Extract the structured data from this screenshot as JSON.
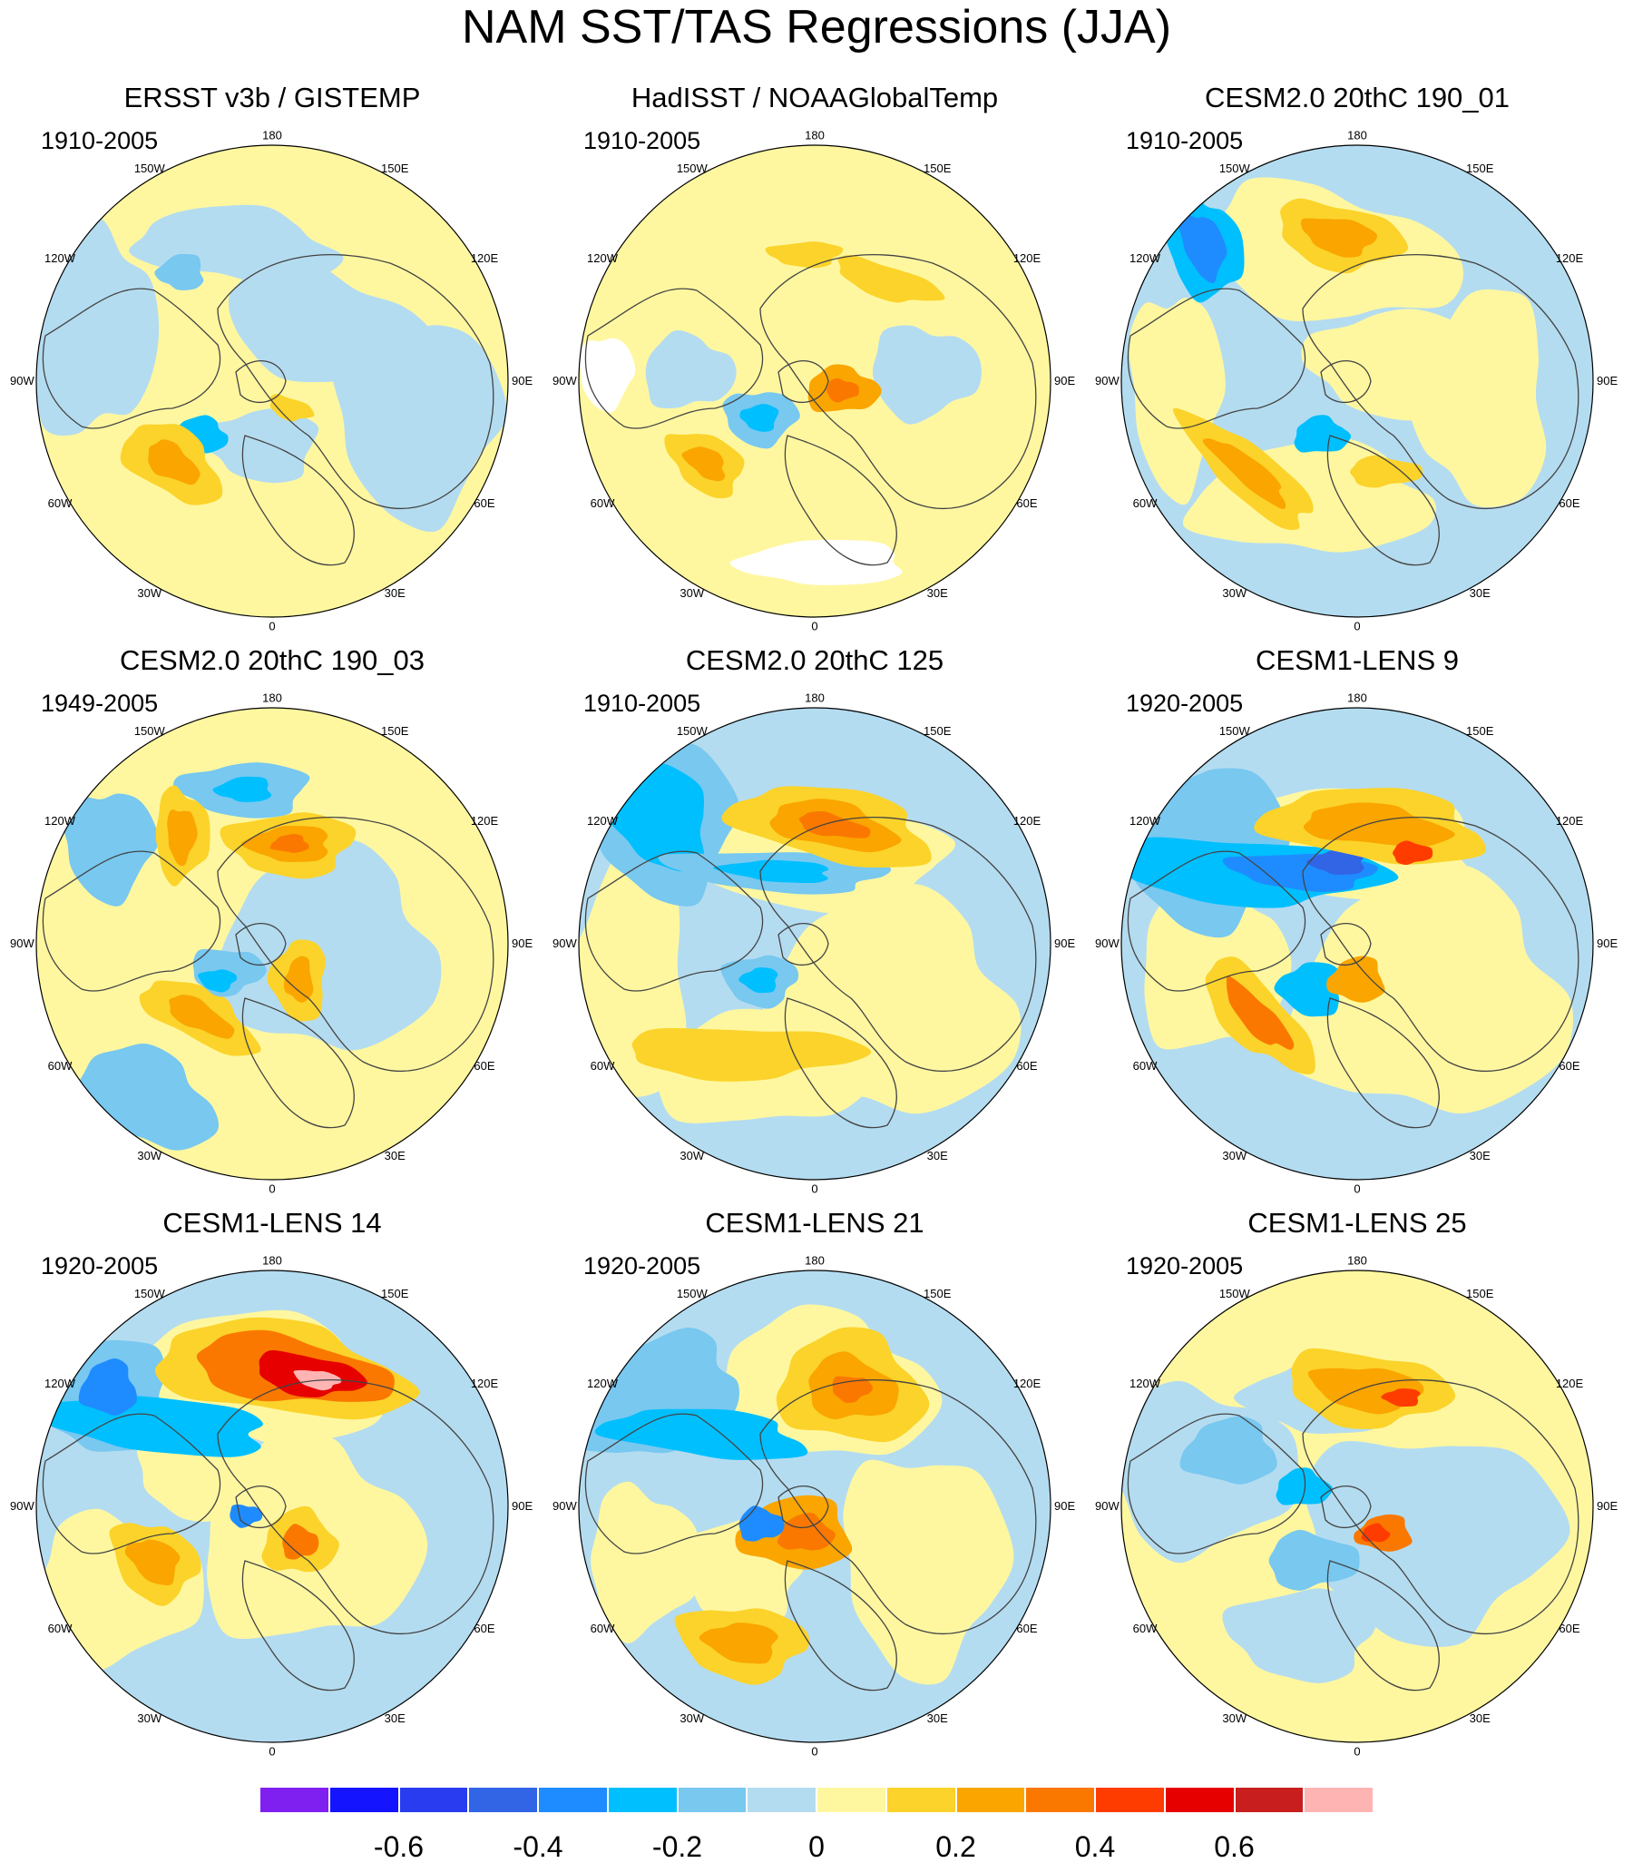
{
  "title": "NAM SST/TAS Regressions (JJA)",
  "longitude_labels": [
    "180",
    "150E",
    "120E",
    "90E",
    "60E",
    "30E",
    "0",
    "30W",
    "60W",
    "90W",
    "120W",
    "150W"
  ],
  "colors": {
    "land_outline": "#444444",
    "missing": "#ffffff",
    "circle": "#000000"
  },
  "panels": [
    {
      "title": "ERSST v3b / GISTEMP",
      "period": "1910-2005"
    },
    {
      "title": "HadISST / NOAAGlobalTemp",
      "period": "1910-2005"
    },
    {
      "title": "CESM2.0 20thC 190_01",
      "period": "1910-2005"
    },
    {
      "title": "CESM2.0 20thC 190_03",
      "period": "1949-2005"
    },
    {
      "title": "CESM2.0 20thC 125",
      "period": "1910-2005"
    },
    {
      "title": "CESM1-LENS 9",
      "period": "1920-2005"
    },
    {
      "title": "CESM1-LENS 14",
      "period": "1920-2005"
    },
    {
      "title": "CESM1-LENS 21",
      "period": "1920-2005"
    },
    {
      "title": "CESM1-LENS 25",
      "period": "1920-2005"
    }
  ],
  "colorbar": {
    "colors": [
      "#8020f0",
      "#1414ff",
      "#2a3cf0",
      "#3264e6",
      "#1e8cff",
      "#00bfff",
      "#78c8f0",
      "#b4dcf0",
      "#fff7a0",
      "#fbd32a",
      "#faa500",
      "#fa7800",
      "#ff3c00",
      "#e60000",
      "#c81e1e",
      "#ffb4b4"
    ],
    "labels": [
      "-0.6",
      "-0.4",
      "-0.2",
      "0",
      "0.2",
      "0.4",
      "0.6"
    ]
  }
}
